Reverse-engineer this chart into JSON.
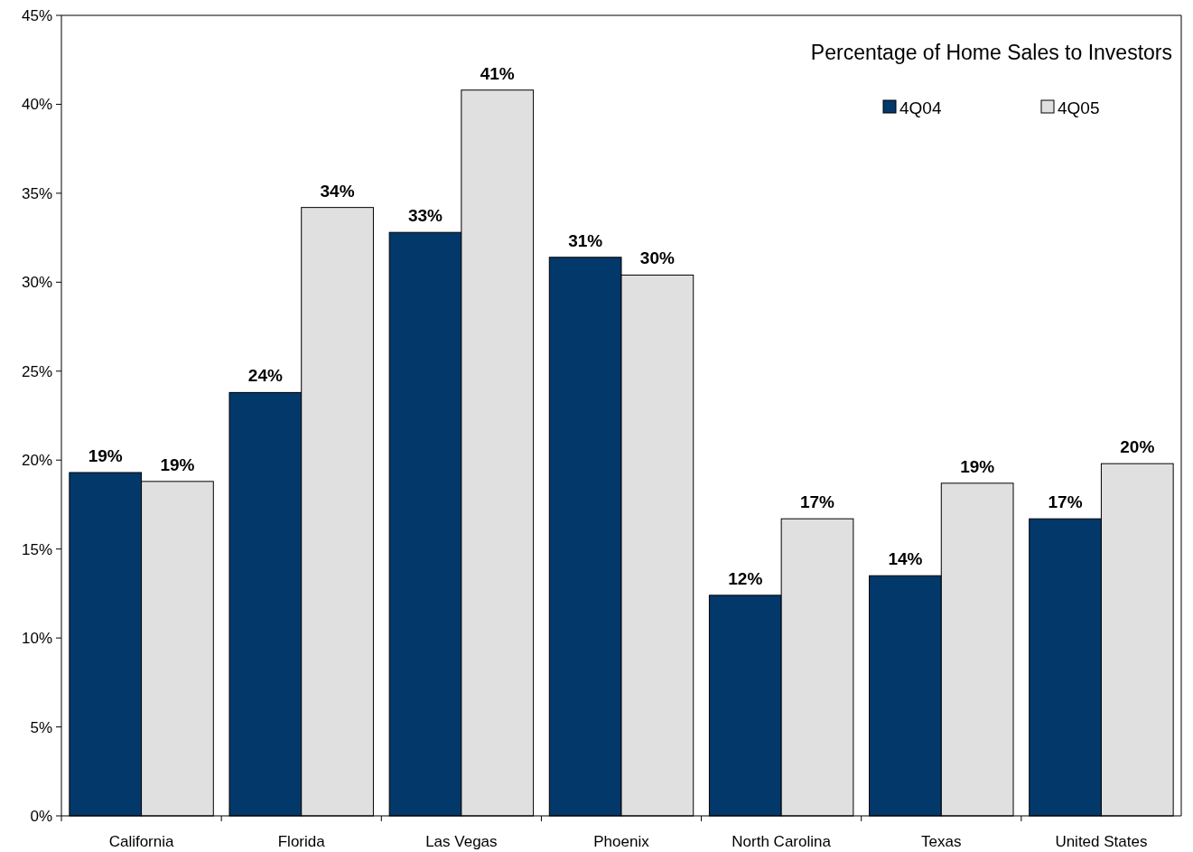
{
  "chart_data": {
    "type": "bar",
    "title": "Percentage of Home Sales to Investors",
    "categories": [
      "California",
      "Florida",
      "Las Vegas",
      "Phoenix",
      "North Carolina",
      "Texas",
      "United States"
    ],
    "series": [
      {
        "name": "4Q04",
        "color": "#03386a",
        "values": [
          19.3,
          23.8,
          32.8,
          31.4,
          12.4,
          13.5,
          16.7
        ],
        "value_labels": [
          "19%",
          "24%",
          "33%",
          "31%",
          "12%",
          "14%",
          "17%"
        ]
      },
      {
        "name": "4Q05",
        "color": "#e0e0e0",
        "values": [
          18.8,
          34.2,
          40.8,
          30.4,
          16.7,
          18.7,
          19.8
        ],
        "value_labels": [
          "19%",
          "34%",
          "41%",
          "30%",
          "17%",
          "19%",
          "20%"
        ]
      }
    ],
    "ylim": [
      0,
      45
    ],
    "yticks": [
      {
        "value": 0,
        "label": "0%"
      },
      {
        "value": 5,
        "label": "5%"
      },
      {
        "value": 10,
        "label": "10%"
      },
      {
        "value": 15,
        "label": "15%"
      },
      {
        "value": 20,
        "label": "20%"
      },
      {
        "value": 25,
        "label": "25%"
      },
      {
        "value": 30,
        "label": "30%"
      },
      {
        "value": 35,
        "label": "35%"
      },
      {
        "value": 40,
        "label": "40%"
      },
      {
        "value": 45,
        "label": "45%"
      }
    ],
    "legend": "top right"
  }
}
